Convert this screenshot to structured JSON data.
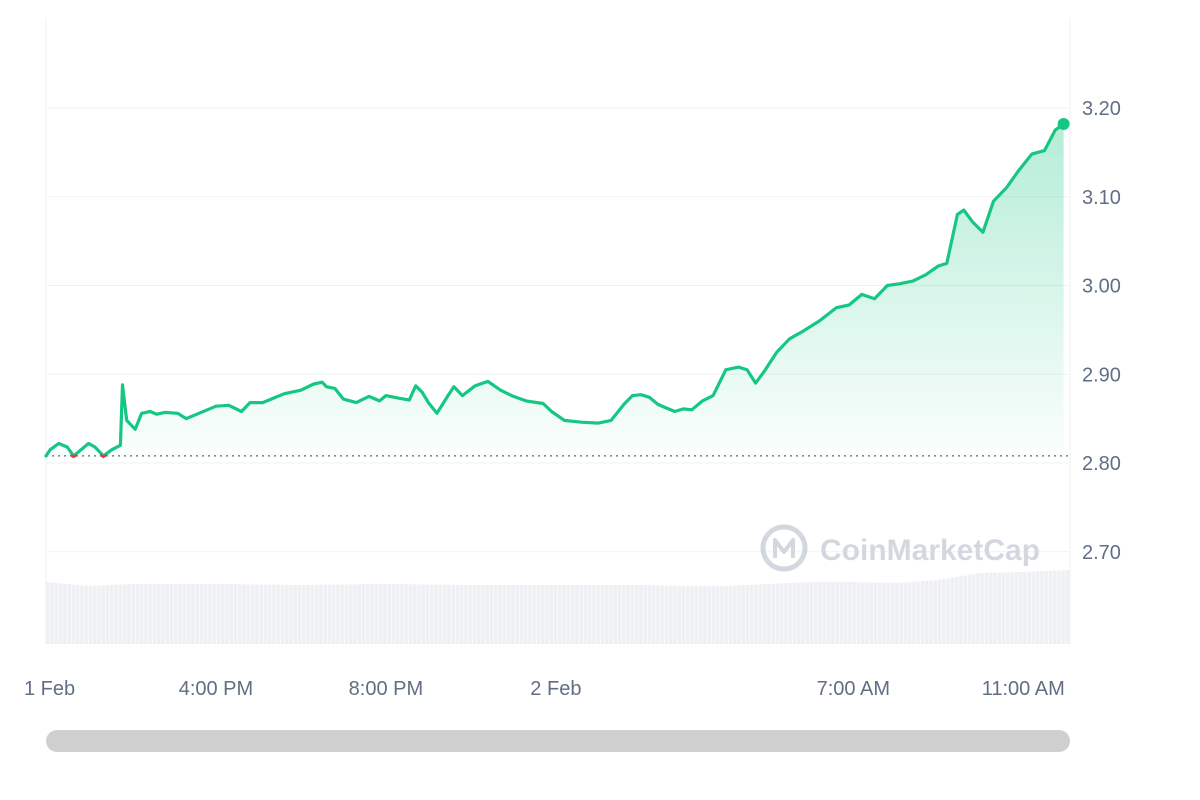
{
  "watermark": "CoinMarketCap",
  "colors": {
    "line": "#16c784",
    "line_below_baseline": "#ea3943",
    "area_top": "#16c784",
    "volume": "#eef0f4",
    "grid": "#eff2f5",
    "baseline": "#58667e",
    "tick_text": "#616e85",
    "watermark": "#d3d8e0",
    "scrollbar": "#cfcfcf"
  },
  "chart_data": {
    "type": "area",
    "title": "",
    "xlabel": "",
    "ylabel": "",
    "x_ticks": [
      {
        "label": "1 Feb",
        "t": 0
      },
      {
        "label": "4:00 PM",
        "t": 4
      },
      {
        "label": "8:00 PM",
        "t": 8
      },
      {
        "label": "2 Feb",
        "t": 12
      },
      {
        "label": "7:00 AM",
        "t": 19
      },
      {
        "label": "11:00 AM",
        "t": 23
      }
    ],
    "y_ticks": [
      2.7,
      2.8,
      2.9,
      3.0,
      3.1,
      3.2
    ],
    "ylim": [
      2.6,
      3.3
    ],
    "xlim_hours": [
      0,
      24.1
    ],
    "baseline": 2.808,
    "grid": true,
    "y_axis_position": "right",
    "series": [
      {
        "points": [
          [
            0.0,
            2.808
          ],
          [
            0.1,
            2.815
          ],
          [
            0.3,
            2.822
          ],
          [
            0.5,
            2.818
          ],
          [
            0.65,
            2.808
          ],
          [
            0.8,
            2.814
          ],
          [
            1.0,
            2.822
          ],
          [
            1.15,
            2.818
          ],
          [
            1.35,
            2.808
          ],
          [
            1.55,
            2.815
          ],
          [
            1.75,
            2.82
          ],
          [
            1.8,
            2.888
          ],
          [
            1.9,
            2.848
          ],
          [
            2.1,
            2.838
          ],
          [
            2.25,
            2.856
          ],
          [
            2.45,
            2.858
          ],
          [
            2.6,
            2.855
          ],
          [
            2.8,
            2.857
          ],
          [
            3.1,
            2.856
          ],
          [
            3.3,
            2.85
          ],
          [
            3.6,
            2.856
          ],
          [
            4.0,
            2.864
          ],
          [
            4.3,
            2.865
          ],
          [
            4.6,
            2.858
          ],
          [
            4.8,
            2.868
          ],
          [
            5.1,
            2.868
          ],
          [
            5.3,
            2.872
          ],
          [
            5.6,
            2.878
          ],
          [
            6.0,
            2.882
          ],
          [
            6.3,
            2.889
          ],
          [
            6.5,
            2.891
          ],
          [
            6.6,
            2.886
          ],
          [
            6.8,
            2.884
          ],
          [
            7.0,
            2.872
          ],
          [
            7.3,
            2.868
          ],
          [
            7.6,
            2.875
          ],
          [
            7.85,
            2.87
          ],
          [
            8.0,
            2.876
          ],
          [
            8.3,
            2.873
          ],
          [
            8.55,
            2.871
          ],
          [
            8.7,
            2.887
          ],
          [
            8.85,
            2.88
          ],
          [
            9.0,
            2.868
          ],
          [
            9.2,
            2.856
          ],
          [
            9.45,
            2.875
          ],
          [
            9.6,
            2.886
          ],
          [
            9.8,
            2.876
          ],
          [
            10.1,
            2.887
          ],
          [
            10.4,
            2.892
          ],
          [
            10.7,
            2.882
          ],
          [
            11.0,
            2.875
          ],
          [
            11.3,
            2.87
          ],
          [
            11.7,
            2.867
          ],
          [
            11.9,
            2.858
          ],
          [
            12.2,
            2.848
          ],
          [
            12.6,
            2.846
          ],
          [
            13.0,
            2.845
          ],
          [
            13.3,
            2.848
          ],
          [
            13.6,
            2.866
          ],
          [
            13.8,
            2.876
          ],
          [
            14.0,
            2.877
          ],
          [
            14.2,
            2.874
          ],
          [
            14.4,
            2.866
          ],
          [
            14.6,
            2.862
          ],
          [
            14.8,
            2.858
          ],
          [
            15.0,
            2.861
          ],
          [
            15.2,
            2.86
          ],
          [
            15.45,
            2.87
          ],
          [
            15.7,
            2.876
          ],
          [
            16.0,
            2.905
          ],
          [
            16.3,
            2.908
          ],
          [
            16.5,
            2.905
          ],
          [
            16.7,
            2.89
          ],
          [
            16.9,
            2.903
          ],
          [
            17.2,
            2.925
          ],
          [
            17.5,
            2.94
          ],
          [
            17.8,
            2.948
          ],
          [
            18.2,
            2.96
          ],
          [
            18.6,
            2.975
          ],
          [
            18.9,
            2.978
          ],
          [
            19.2,
            2.99
          ],
          [
            19.5,
            2.985
          ],
          [
            19.8,
            3.0
          ],
          [
            20.1,
            3.002
          ],
          [
            20.4,
            3.005
          ],
          [
            20.7,
            3.012
          ],
          [
            21.0,
            3.022
          ],
          [
            21.2,
            3.025
          ],
          [
            21.45,
            3.08
          ],
          [
            21.6,
            3.085
          ],
          [
            21.8,
            3.072
          ],
          [
            22.05,
            3.06
          ],
          [
            22.3,
            3.095
          ],
          [
            22.6,
            3.11
          ],
          [
            22.9,
            3.13
          ],
          [
            23.2,
            3.148
          ],
          [
            23.5,
            3.152
          ],
          [
            23.75,
            3.175
          ],
          [
            23.95,
            3.182
          ]
        ]
      }
    ],
    "volume": [
      {
        "t": 0.0,
        "v": 0.62
      },
      {
        "t": 1.0,
        "v": 0.58
      },
      {
        "t": 2.0,
        "v": 0.6
      },
      {
        "t": 4.0,
        "v": 0.6
      },
      {
        "t": 6.0,
        "v": 0.59
      },
      {
        "t": 8.0,
        "v": 0.6
      },
      {
        "t": 10.0,
        "v": 0.59
      },
      {
        "t": 12.0,
        "v": 0.59
      },
      {
        "t": 14.0,
        "v": 0.59
      },
      {
        "t": 15.0,
        "v": 0.58
      },
      {
        "t": 16.0,
        "v": 0.58
      },
      {
        "t": 17.0,
        "v": 0.6
      },
      {
        "t": 18.0,
        "v": 0.62
      },
      {
        "t": 19.0,
        "v": 0.62
      },
      {
        "t": 20.0,
        "v": 0.61
      },
      {
        "t": 21.0,
        "v": 0.64
      },
      {
        "t": 22.0,
        "v": 0.71
      },
      {
        "t": 23.0,
        "v": 0.72
      },
      {
        "t": 24.1,
        "v": 0.74
      }
    ]
  }
}
